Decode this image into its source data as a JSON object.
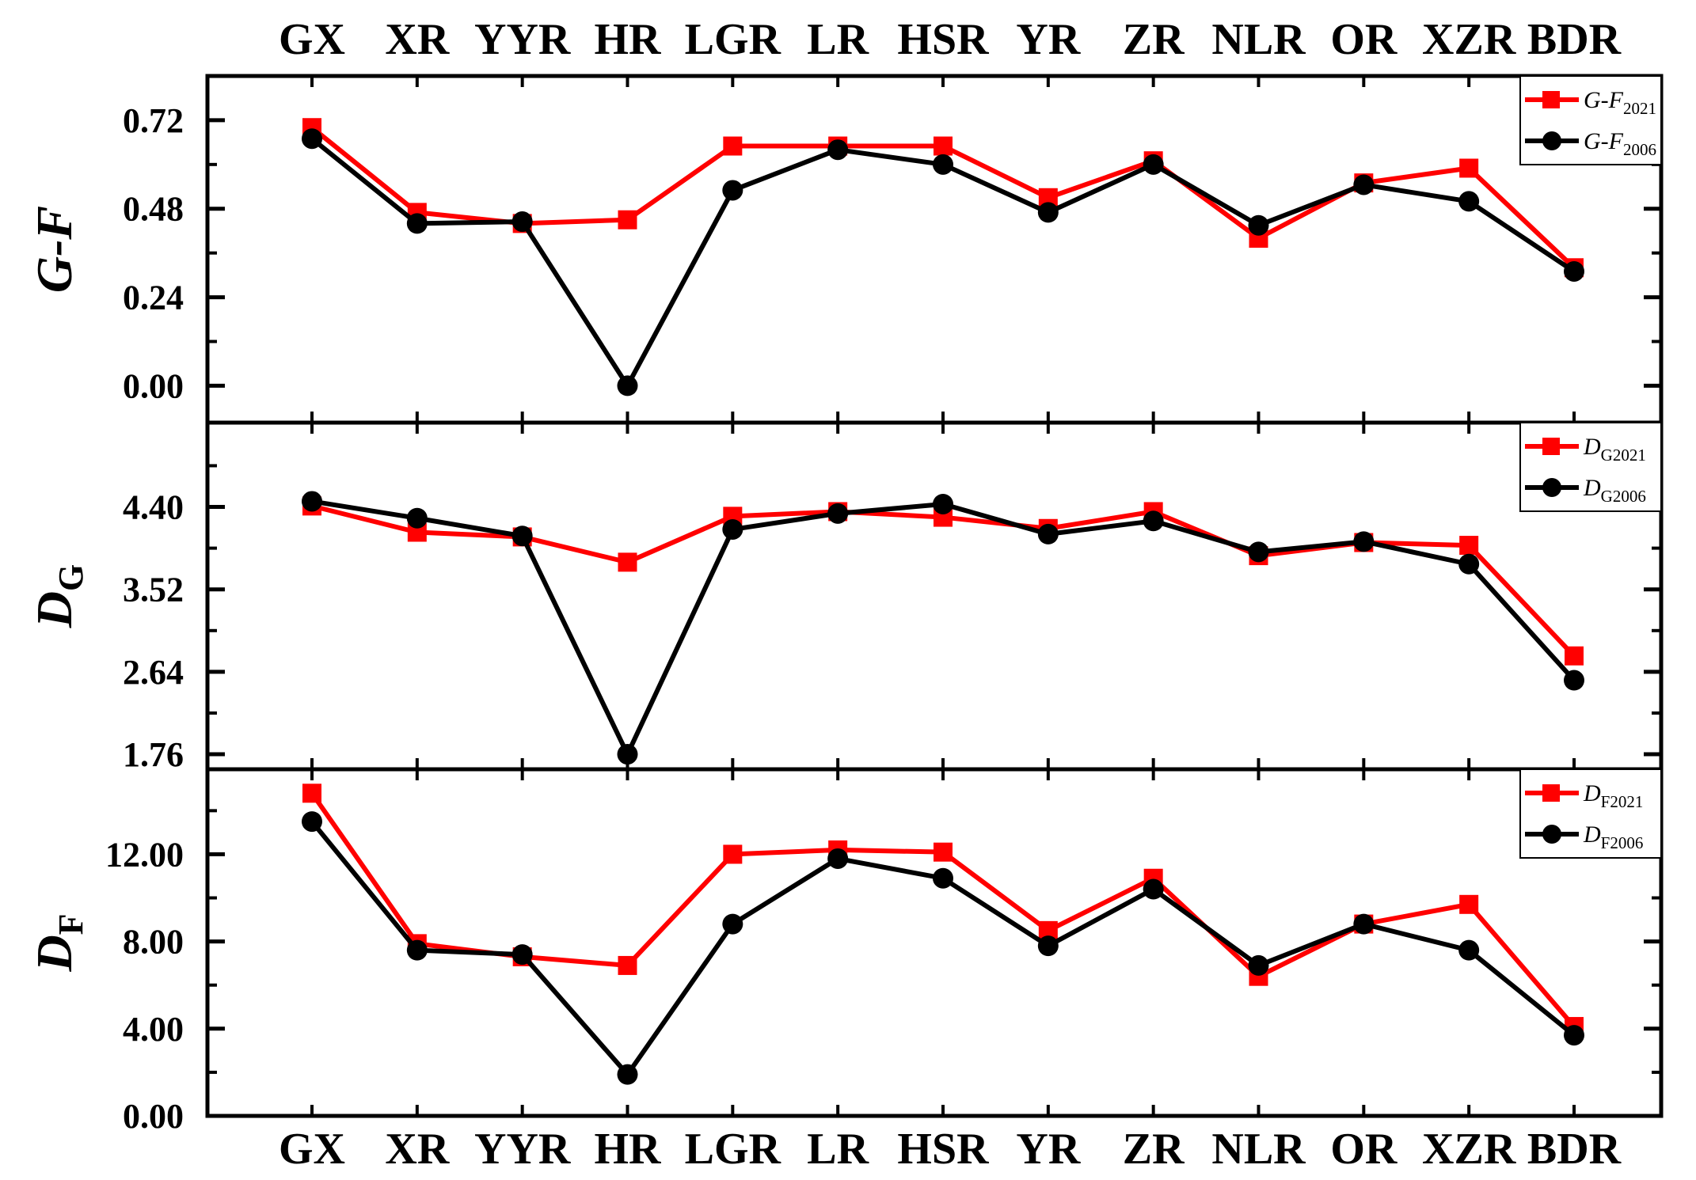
{
  "chart_data": {
    "type": "line",
    "categories": [
      "GX",
      "XR",
      "YYR",
      "HR",
      "LGR",
      "LR",
      "HSR",
      "YR",
      "ZR",
      "NLR",
      "OR",
      "XZR",
      "BDR"
    ],
    "colors": {
      "series_2021": "#ff0000",
      "series_2006": "#000000"
    },
    "grid": false,
    "legend_position": "top-right",
    "panels": [
      {
        "ylabel_main": "G-F",
        "ylabel_sub": "",
        "yticks": [
          "0.00",
          "0.24",
          "0.48",
          "0.72"
        ],
        "ytick_values": [
          0.0,
          0.24,
          0.48,
          0.72
        ],
        "ylim": [
          -0.1,
          0.84
        ],
        "series": [
          {
            "name_main": "G-F",
            "name_sub": "2021",
            "marker": "square",
            "values": [
              0.7,
              0.47,
              0.44,
              0.45,
              0.65,
              0.65,
              0.65,
              0.51,
              0.61,
              0.4,
              0.55,
              0.59,
              0.32
            ]
          },
          {
            "name_main": "G-F",
            "name_sub": "2006",
            "marker": "circle",
            "values": [
              0.67,
              0.44,
              0.445,
              0.0,
              0.53,
              0.64,
              0.6,
              0.47,
              0.6,
              0.435,
              0.545,
              0.5,
              0.31
            ]
          }
        ]
      },
      {
        "ylabel_main": "D",
        "ylabel_sub": "G",
        "yticks": [
          "1.76",
          "2.64",
          "3.52",
          "4.40"
        ],
        "ytick_values": [
          1.76,
          2.64,
          3.52,
          4.4
        ],
        "ylim": [
          1.6,
          5.3
        ],
        "series": [
          {
            "name_main": "D",
            "name_sub": "G2021",
            "marker": "square",
            "values": [
              4.41,
              4.13,
              4.08,
              3.81,
              4.3,
              4.35,
              4.29,
              4.17,
              4.35,
              3.88,
              4.02,
              3.99,
              2.81
            ]
          },
          {
            "name_main": "D",
            "name_sub": "G2006",
            "marker": "circle",
            "values": [
              4.46,
              4.28,
              4.09,
              1.76,
              4.16,
              4.33,
              4.43,
              4.11,
              4.25,
              3.92,
              4.03,
              3.79,
              2.55
            ]
          }
        ]
      },
      {
        "ylabel_main": "D",
        "ylabel_sub": "F",
        "yticks": [
          "0.00",
          "4.00",
          "8.00",
          "12.00"
        ],
        "ytick_values": [
          0.0,
          4.0,
          8.0,
          12.0
        ],
        "ylim": [
          0.0,
          15.9
        ],
        "series": [
          {
            "name_main": "D",
            "name_sub": "F2021",
            "marker": "square",
            "values": [
              14.8,
              7.9,
              7.3,
              6.9,
              12.0,
              12.2,
              12.1,
              8.5,
              10.9,
              6.4,
              8.8,
              9.7,
              4.1
            ]
          },
          {
            "name_main": "D",
            "name_sub": "F2006",
            "marker": "circle",
            "values": [
              13.5,
              7.6,
              7.4,
              1.9,
              8.8,
              11.8,
              10.9,
              7.8,
              10.4,
              6.9,
              8.8,
              7.6,
              3.7
            ]
          }
        ]
      }
    ]
  }
}
